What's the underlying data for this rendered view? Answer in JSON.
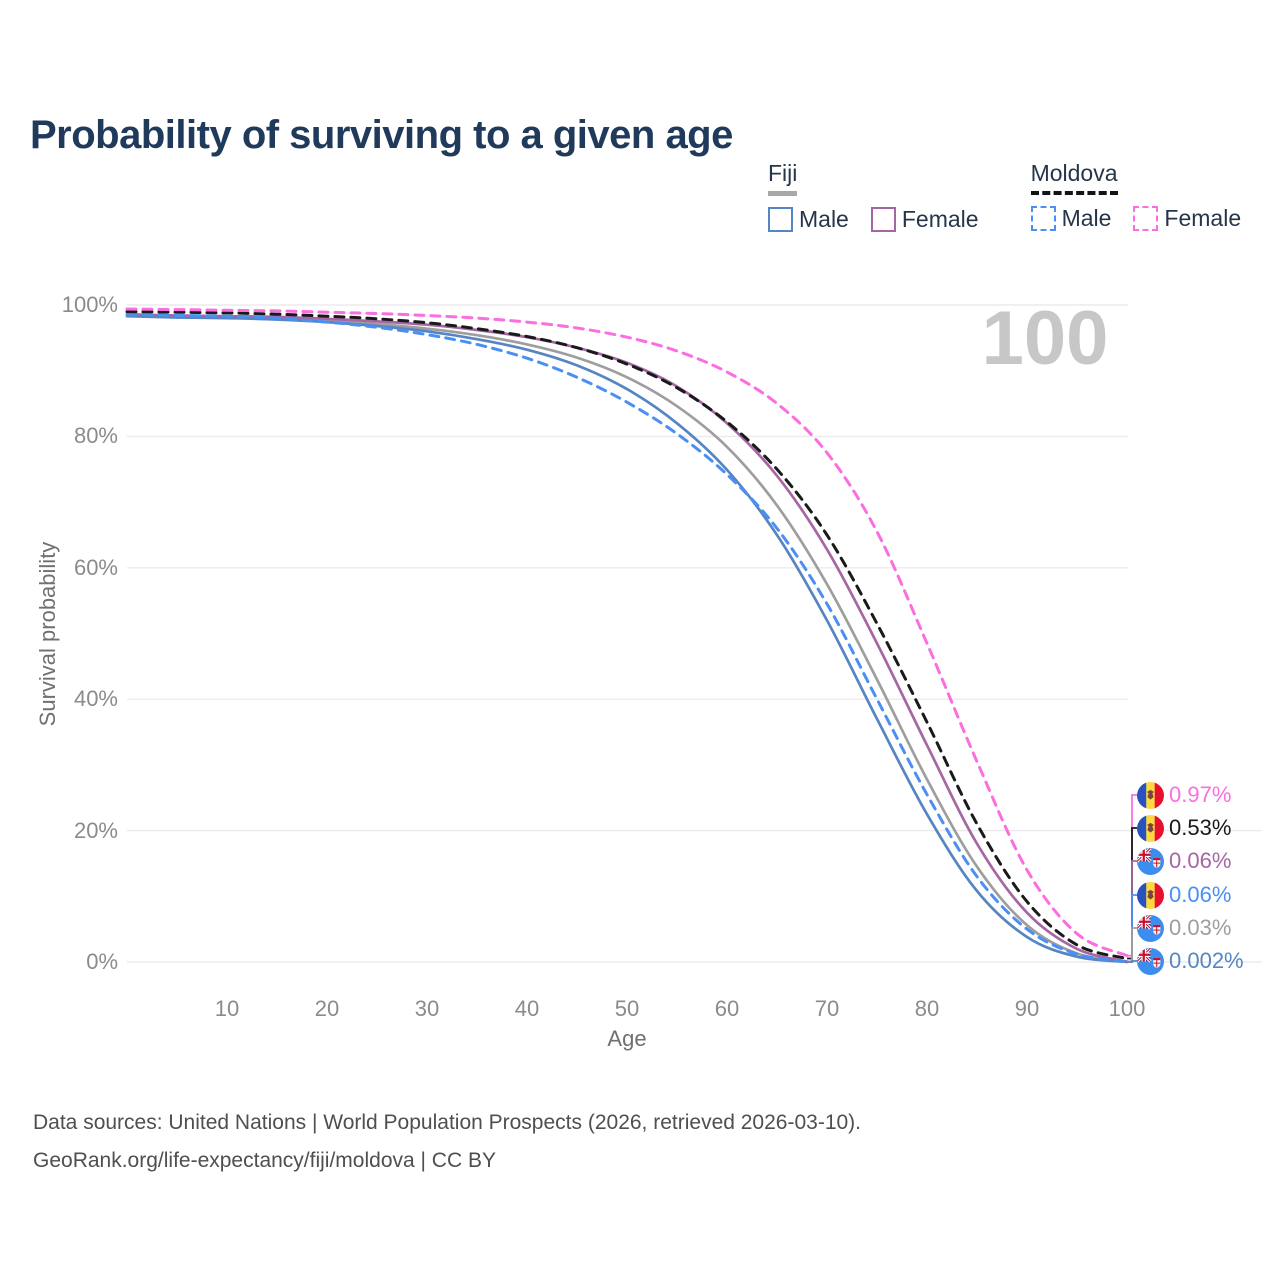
{
  "title": "Probability of surviving to a given age",
  "watermark": "100",
  "legend": {
    "groups": [
      {
        "country": "Fiji",
        "style": "solid",
        "items": [
          {
            "label": "Male",
            "color": "#5585c2"
          },
          {
            "label": "Female",
            "color": "#a666a3"
          }
        ]
      },
      {
        "country": "Moldova",
        "style": "dashed",
        "items": [
          {
            "label": "Male",
            "color": "#4b8ff5"
          },
          {
            "label": "Female",
            "color": "#fb6ee0"
          }
        ]
      }
    ]
  },
  "chart_data": {
    "type": "line",
    "title": "Probability of surviving to a given age",
    "xlabel": "Age",
    "ylabel": "Survival probability",
    "xlim": [
      0,
      100
    ],
    "ylim": [
      0,
      100
    ],
    "grid": "horizontal",
    "legend_position": "top-right",
    "x_ticks": [
      10,
      20,
      30,
      40,
      50,
      60,
      70,
      80,
      90,
      100
    ],
    "y_ticks": [
      0,
      20,
      40,
      60,
      80,
      100
    ],
    "y_tick_labels": [
      "0%",
      "20%",
      "40%",
      "60%",
      "80%",
      "100%"
    ],
    "x": [
      0,
      5,
      10,
      15,
      20,
      25,
      30,
      35,
      40,
      45,
      50,
      55,
      60,
      65,
      70,
      75,
      80,
      85,
      90,
      95,
      100
    ],
    "series": [
      {
        "name": "Fiji Total",
        "country": "fiji",
        "sex": "total",
        "color": "#9e9e9e",
        "dash": "solid",
        "end_label": "0.03%",
        "label_row": 4,
        "values": [
          98.5,
          98.3,
          98.2,
          98.0,
          97.6,
          97.1,
          96.4,
          95.4,
          94.0,
          92.0,
          89.0,
          84.6,
          78.4,
          69.5,
          57.5,
          43.0,
          27.8,
          14.5,
          5.6,
          1.3,
          0.03
        ]
      },
      {
        "name": "Fiji Male",
        "country": "fiji",
        "sex": "male",
        "color": "#5585c2",
        "dash": "solid",
        "end_label": "0.002%",
        "label_row": 5,
        "values": [
          98.3,
          98.1,
          98.0,
          97.8,
          97.4,
          96.8,
          96.0,
          94.8,
          93.2,
          90.8,
          87.2,
          82.0,
          74.9,
          65.0,
          52.0,
          37.0,
          22.5,
          10.8,
          3.8,
          0.8,
          0.002
        ]
      },
      {
        "name": "Fiji Female",
        "country": "fiji",
        "sex": "female",
        "color": "#a666a3",
        "dash": "solid",
        "end_label": "0.06%",
        "label_row": 2,
        "values": [
          98.6,
          98.4,
          98.3,
          98.2,
          97.9,
          97.5,
          97.0,
          96.2,
          95.1,
          93.5,
          91.2,
          87.6,
          82.0,
          74.0,
          62.8,
          48.5,
          33.0,
          18.0,
          7.5,
          2.0,
          0.06
        ]
      },
      {
        "name": "Moldova Male",
        "country": "moldova",
        "sex": "male",
        "color": "#4b8ff5",
        "dash": "dashed",
        "end_label": "0.06%",
        "label_row": 3,
        "values": [
          98.6,
          98.4,
          98.3,
          98.0,
          97.4,
          96.6,
          95.5,
          94.0,
          91.9,
          89.0,
          85.2,
          80.4,
          74.2,
          66.0,
          54.5,
          40.0,
          25.5,
          13.0,
          5.0,
          1.2,
          0.06
        ]
      },
      {
        "name": "Moldova Total",
        "country": "moldova",
        "sex": "total",
        "color": "#1a1a1a",
        "dash": "dashed",
        "end_label": "0.53%",
        "label_row": 1,
        "values": [
          99.0,
          98.9,
          98.8,
          98.6,
          98.3,
          97.9,
          97.3,
          96.4,
          95.2,
          93.5,
          91.0,
          87.4,
          82.2,
          75.0,
          65.0,
          51.5,
          36.5,
          21.0,
          9.2,
          2.6,
          0.53
        ]
      },
      {
        "name": "Moldova Female",
        "country": "moldova",
        "sex": "female",
        "color": "#fb6ee0",
        "dash": "dashed",
        "end_label": "0.97%",
        "label_row": 0,
        "values": [
          99.4,
          99.3,
          99.2,
          99.1,
          98.9,
          98.7,
          98.4,
          98.0,
          97.4,
          96.5,
          95.1,
          93.0,
          89.8,
          85.0,
          77.5,
          65.5,
          48.5,
          30.5,
          14.0,
          4.3,
          0.97
        ]
      }
    ],
    "end_labels": [
      {
        "flag": "moldova",
        "text": "0.97%",
        "color": "#fb6ee0"
      },
      {
        "flag": "moldova",
        "text": "0.53%",
        "color": "#1a1a1a"
      },
      {
        "flag": "fiji",
        "text": "0.06%",
        "color": "#a666a3"
      },
      {
        "flag": "moldova",
        "text": "0.06%",
        "color": "#4b8ff5"
      },
      {
        "flag": "fiji",
        "text": "0.03%",
        "color": "#9e9e9e"
      },
      {
        "flag": "fiji",
        "text": "0.002%",
        "color": "#5585c2"
      }
    ]
  },
  "footer": {
    "line1": "Data sources: United Nations | World Population Prospects (2026, retrieved 2026-03-10).",
    "line2": "GeoRank.org/life-expectancy/fiji/moldova | CC BY"
  }
}
